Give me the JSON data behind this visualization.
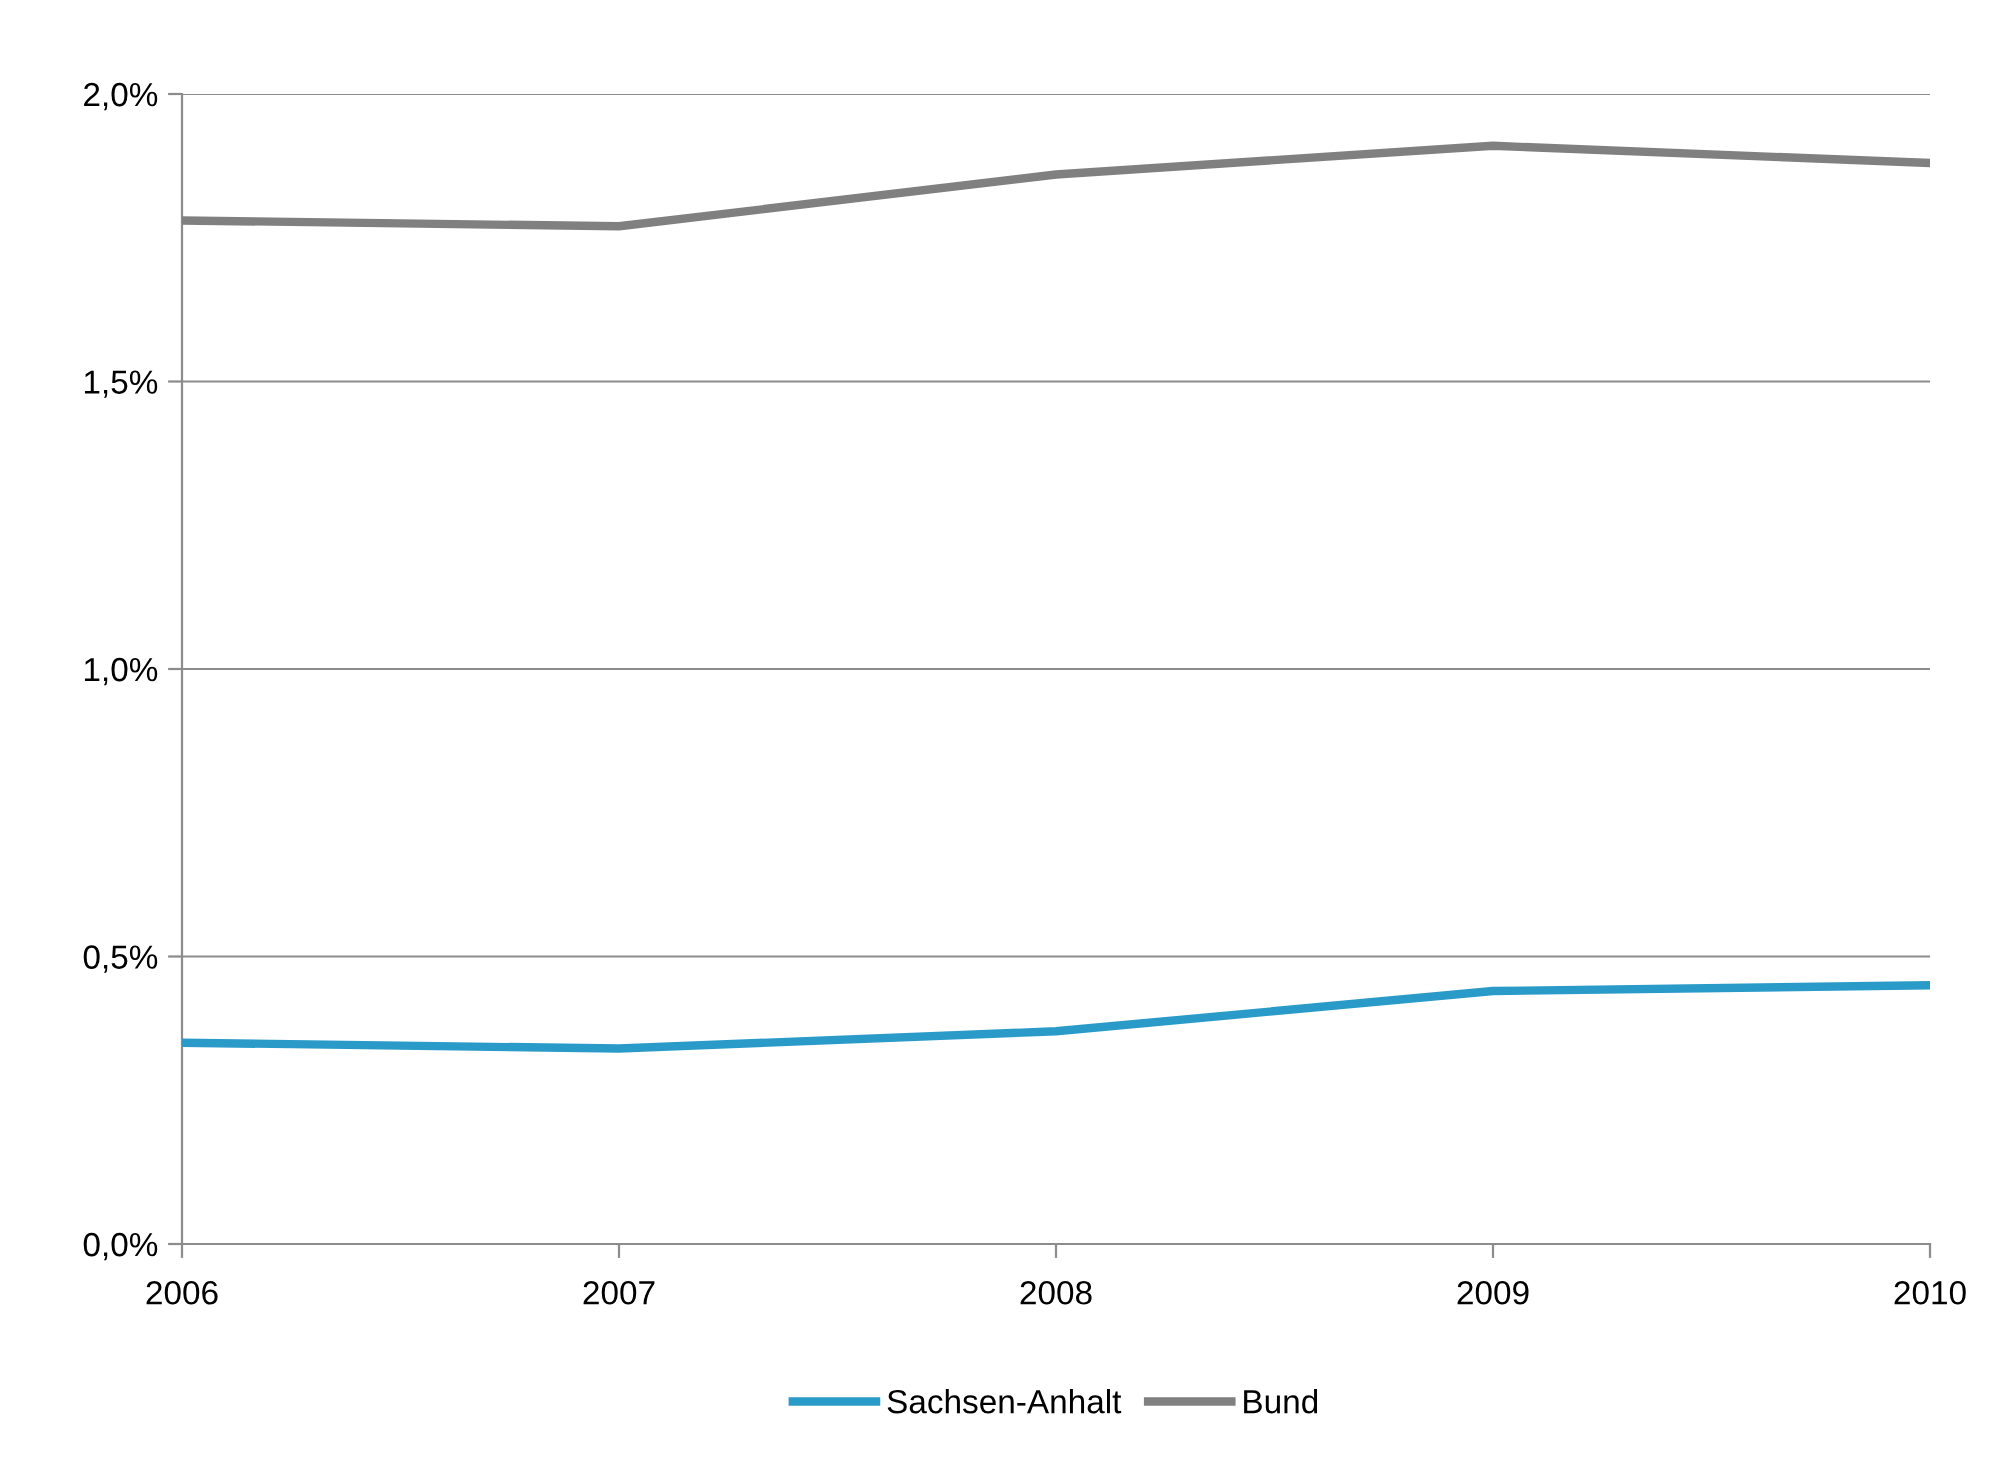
{
  "chart_data": {
    "type": "line",
    "categories": [
      "2006",
      "2007",
      "2008",
      "2009",
      "2010"
    ],
    "series": [
      {
        "name": "Sachsen-Anhalt",
        "color": "#2a9bc9",
        "values": [
          0.35,
          0.34,
          0.37,
          0.44,
          0.45
        ]
      },
      {
        "name": "Bund",
        "color": "#808080",
        "values": [
          1.78,
          1.77,
          1.86,
          1.91,
          1.88
        ]
      }
    ],
    "ylim": [
      0,
      2
    ],
    "yticks": [
      {
        "value": 0,
        "label": "0,0%"
      },
      {
        "value": 0.5,
        "label": "0,5%"
      },
      {
        "value": 1,
        "label": "1,0%"
      },
      {
        "value": 1.5,
        "label": "1,5%"
      },
      {
        "value": 2,
        "label": "2,0%"
      }
    ],
    "grid": "y",
    "legend": "bottom",
    "marker": "none",
    "line_style": "solid"
  }
}
